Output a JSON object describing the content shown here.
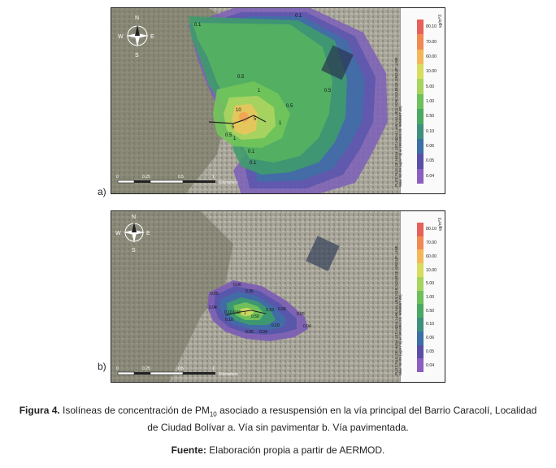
{
  "panels": [
    {
      "id": "a",
      "letter": "a)",
      "compass": {
        "n": "N",
        "s": "S",
        "e": "E",
        "w": "W"
      },
      "scale_labels": [
        "0",
        "0.25",
        "0.5",
        "1"
      ],
      "scale_unit": "Kilometers",
      "contour_labels": [
        "0.1",
        "0.1",
        "0.5",
        "0.5",
        "0.5",
        "1",
        "1",
        "1",
        "10",
        "5",
        "5",
        "0.5",
        "0.1",
        "0.1"
      ],
      "legend": {
        "title_line1": "PLOT FILE OF HIGH 1ST HIGH 1-HR VALUES FOR SOURCE GROUP: LINE",
        "title_line2": "Max: 80.09 [ug/m^3] at (991893.20, 9058957.00)",
        "units": "ug/m^3",
        "levels": [
          "80.10",
          "70.00",
          "60.00",
          "10.00",
          "5.00",
          "1.00",
          "0.50",
          "0.10",
          "0.06",
          "0.05",
          "0.04"
        ],
        "colors": [
          "#e8605a",
          "#f08a52",
          "#f3b75a",
          "#d8dd5f",
          "#a7d35f",
          "#6dc05a",
          "#49a962",
          "#3f8f7e",
          "#3c6fa3",
          "#5a4fa8",
          "#8a5fbf"
        ]
      }
    },
    {
      "id": "b",
      "letter": "b)",
      "compass": {
        "n": "N",
        "s": "S",
        "e": "E",
        "w": "W"
      },
      "scale_labels": [
        "0",
        "0.25",
        "0.5",
        "1"
      ],
      "scale_unit": "Kilometers",
      "contour_labels": [
        "0.06",
        "0.05",
        "0.06",
        "0.04",
        "0.10",
        "0.50",
        "1",
        "0.50",
        "0.10",
        "0.06",
        "0.05",
        "0.04",
        "0.10",
        "0.05",
        "0.04",
        "0.10"
      ],
      "legend": {
        "title_line1": "PLOT FILE OF HIGH 1ST HIGH 1-HR VALUES FOR SOURCE GROUP: LINE",
        "title_line2": "Max: 80.09 [ug/m^3] at (991893.20, 9058957.00)",
        "units": "ug/m^3",
        "levels": [
          "80.10",
          "70.00",
          "60.00",
          "10.00",
          "5.00",
          "1.00",
          "0.50",
          "0.10",
          "0.06",
          "0.05",
          "0.04"
        ],
        "colors": [
          "#e8605a",
          "#f08a52",
          "#f3b75a",
          "#d8dd5f",
          "#a7d35f",
          "#6dc05a",
          "#49a962",
          "#3f8f7e",
          "#3c6fa3",
          "#5a4fa8",
          "#8a5fbf"
        ]
      }
    }
  ],
  "caption": {
    "label": "Figura 4.",
    "text_before_sub": " Isolíneas de concentración de PM",
    "sub": "10",
    "text_after_sub": " asociado a resuspensión en la vía principal del Barrio Caracolí, Localidad",
    "line2": "de Ciudad Bolívar a. Vía sin pavimentar b. Vía pavimentada."
  },
  "source": {
    "label": "Fuente:",
    "text": " Elaboración propia a partir de AERMOD."
  }
}
